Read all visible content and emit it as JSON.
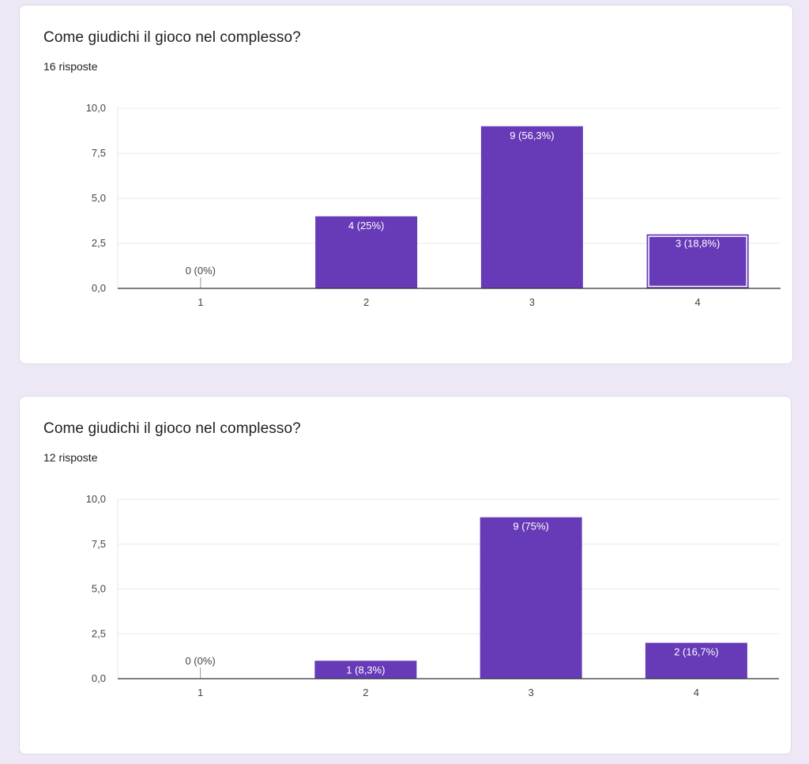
{
  "colors": {
    "bar": "#673ab7",
    "page": "#ede7f6",
    "grid": "#e8e8e8",
    "axis": "#333333"
  },
  "cards": [
    {
      "title": "Come giudichi il gioco nel complesso?",
      "responses": "16 risposte",
      "selected_bar": 3,
      "chart_data": {
        "type": "bar",
        "categories": [
          "1",
          "2",
          "3",
          "4"
        ],
        "values": [
          0,
          4,
          9,
          3
        ],
        "labels": [
          "0 (0%)",
          "4 (25%)",
          "9 (56,3%)",
          "3 (18,8%)"
        ],
        "ylim": [
          0,
          10
        ],
        "yticks": [
          "0,0",
          "2,5",
          "5,0",
          "7,5",
          "10,0"
        ],
        "grid": true
      }
    },
    {
      "title": "Come giudichi il gioco nel complesso?",
      "responses": "12 risposte",
      "selected_bar": -1,
      "chart_data": {
        "type": "bar",
        "categories": [
          "1",
          "2",
          "3",
          "4"
        ],
        "values": [
          0,
          1,
          9,
          2
        ],
        "labels": [
          "0 (0%)",
          "1 (8,3%)",
          "9 (75%)",
          "2 (16,7%)"
        ],
        "ylim": [
          0,
          10
        ],
        "yticks": [
          "0,0",
          "2,5",
          "5,0",
          "7,5",
          "10,0"
        ],
        "grid": true
      }
    }
  ]
}
